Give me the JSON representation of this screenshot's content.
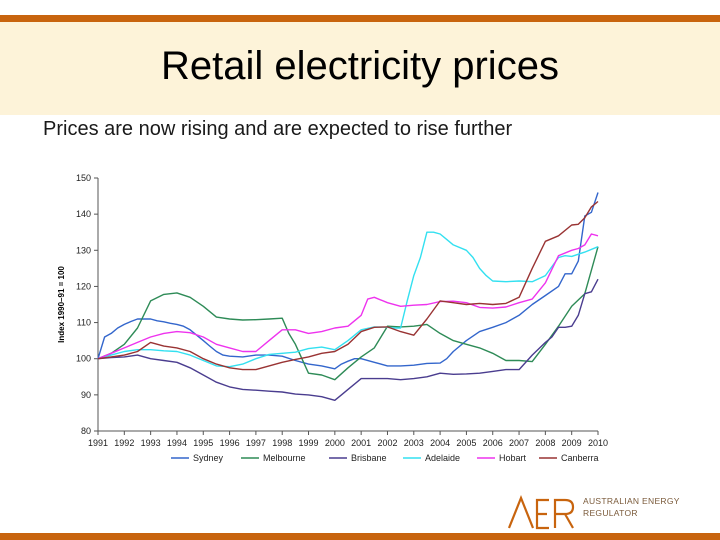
{
  "slide": {
    "title": "Retail electricity prices",
    "subtitle": "Prices are now rising and are expected to rise further"
  },
  "colors": {
    "accent_bar": "#c8640e",
    "band": "#fdf3d9",
    "logo_orange": "#c8640e",
    "logo_text": "#7a5a3a"
  },
  "logo": {
    "mark": "AER",
    "line1": "AUSTRALIAN ENERGY",
    "line2": "REGULATOR"
  },
  "chart_data": {
    "type": "line",
    "ylabel": "Index 1990–91 = 100",
    "xlabel": "",
    "ylim": [
      80,
      150
    ],
    "yticks": [
      80,
      90,
      100,
      110,
      120,
      130,
      140,
      150
    ],
    "xticks": [
      "1991",
      "1992",
      "1993",
      "1994",
      "1995",
      "1996",
      "1997",
      "1998",
      "1999",
      "2000",
      "2001",
      "2002",
      "2003",
      "2004",
      "2005",
      "2006",
      "2007",
      "2008",
      "2009",
      "2010"
    ],
    "xlim": [
      1991,
      2010
    ],
    "grid": false,
    "legend": "bottom",
    "series": [
      {
        "name": "Sydney",
        "color": "#3366cc",
        "points": [
          [
            1991,
            100
          ],
          [
            1991.25,
            106
          ],
          [
            1991.5,
            107
          ],
          [
            1991.75,
            108.5
          ],
          [
            1992,
            109.5
          ],
          [
            1992.25,
            110.3
          ],
          [
            1992.5,
            111
          ],
          [
            1992.75,
            111
          ],
          [
            1993,
            111
          ],
          [
            1993.25,
            110.5
          ],
          [
            1993.5,
            110.2
          ],
          [
            1993.75,
            109.8
          ],
          [
            1994,
            109.5
          ],
          [
            1994.25,
            109
          ],
          [
            1994.5,
            108
          ],
          [
            1994.75,
            106.5
          ],
          [
            1995,
            105
          ],
          [
            1995.25,
            103.5
          ],
          [
            1995.5,
            102
          ],
          [
            1995.75,
            101
          ],
          [
            1996,
            100.7
          ],
          [
            1996.5,
            100.5
          ],
          [
            1997,
            101
          ],
          [
            1997.5,
            101
          ],
          [
            1998,
            100.7
          ],
          [
            1998.5,
            99.5
          ],
          [
            1999,
            98.5
          ],
          [
            1999.5,
            98
          ],
          [
            2000,
            97.2
          ],
          [
            2000.25,
            98.5
          ],
          [
            2000.5,
            99.3
          ],
          [
            2000.75,
            100
          ],
          [
            2001,
            100
          ],
          [
            2001.5,
            99
          ],
          [
            2002,
            98
          ],
          [
            2002.5,
            98
          ],
          [
            2003,
            98.2
          ],
          [
            2003.5,
            98.7
          ],
          [
            2004,
            98.8
          ],
          [
            2004.25,
            100
          ],
          [
            2004.5,
            102
          ],
          [
            2005,
            105
          ],
          [
            2005.5,
            107.5
          ],
          [
            2006,
            108.7
          ],
          [
            2006.5,
            110
          ],
          [
            2007,
            112
          ],
          [
            2007.5,
            115
          ],
          [
            2008,
            117.5
          ],
          [
            2008.5,
            120
          ],
          [
            2008.75,
            123.5
          ],
          [
            2009,
            123.5
          ],
          [
            2009.25,
            127
          ],
          [
            2009.5,
            139.5
          ],
          [
            2009.75,
            140.5
          ],
          [
            2010,
            146
          ]
        ]
      },
      {
        "name": "Melbourne",
        "color": "#2e8b57",
        "points": [
          [
            1991,
            100
          ],
          [
            1991.5,
            101.5
          ],
          [
            1992,
            104
          ],
          [
            1992.5,
            108.5
          ],
          [
            1993,
            116
          ],
          [
            1993.5,
            117.8
          ],
          [
            1994,
            118.2
          ],
          [
            1994.5,
            117
          ],
          [
            1995,
            114.5
          ],
          [
            1995.5,
            111.5
          ],
          [
            1996,
            111
          ],
          [
            1996.5,
            110.7
          ],
          [
            1997,
            110.8
          ],
          [
            1997.5,
            111
          ],
          [
            1998,
            111.2
          ],
          [
            1998.25,
            107
          ],
          [
            1998.5,
            104
          ],
          [
            1999,
            96
          ],
          [
            1999.5,
            95.5
          ],
          [
            2000,
            94.2
          ],
          [
            2000.5,
            97.5
          ],
          [
            2001,
            100.5
          ],
          [
            2001.5,
            103
          ],
          [
            2002,
            109
          ],
          [
            2002.5,
            108.8
          ],
          [
            2003,
            109
          ],
          [
            2003.5,
            109.5
          ],
          [
            2004,
            107
          ],
          [
            2004.5,
            105
          ],
          [
            2005,
            104
          ],
          [
            2005.5,
            103
          ],
          [
            2006,
            101.5
          ],
          [
            2006.5,
            99.5
          ],
          [
            2007,
            99.5
          ],
          [
            2007.5,
            99.2
          ],
          [
            2008,
            104
          ],
          [
            2008.5,
            109
          ],
          [
            2009,
            114.5
          ],
          [
            2009.5,
            118
          ],
          [
            2010,
            131
          ]
        ]
      },
      {
        "name": "Brisbane",
        "color": "#4a3d8f",
        "points": [
          [
            1991,
            100
          ],
          [
            1991.5,
            100.3
          ],
          [
            1992,
            100.5
          ],
          [
            1992.5,
            101
          ],
          [
            1993,
            100
          ],
          [
            1993.5,
            99.5
          ],
          [
            1994,
            99
          ],
          [
            1994.5,
            97.5
          ],
          [
            1995,
            95.5
          ],
          [
            1995.5,
            93.5
          ],
          [
            1996,
            92.2
          ],
          [
            1996.5,
            91.5
          ],
          [
            1997,
            91.3
          ],
          [
            1997.5,
            91
          ],
          [
            1998,
            90.8
          ],
          [
            1998.5,
            90.2
          ],
          [
            1999,
            90
          ],
          [
            1999.5,
            89.5
          ],
          [
            2000,
            88.5
          ],
          [
            2000.25,
            90
          ],
          [
            2000.5,
            91.5
          ],
          [
            2001,
            94.5
          ],
          [
            2001.5,
            94.5
          ],
          [
            2002,
            94.5
          ],
          [
            2002.5,
            94.2
          ],
          [
            2003,
            94.5
          ],
          [
            2003.5,
            95
          ],
          [
            2004,
            96
          ],
          [
            2004.5,
            95.7
          ],
          [
            2005,
            95.8
          ],
          [
            2005.5,
            96
          ],
          [
            2006,
            96.5
          ],
          [
            2006.5,
            97
          ],
          [
            2007,
            97
          ],
          [
            2007.5,
            101
          ],
          [
            2008,
            104.5
          ],
          [
            2008.25,
            106
          ],
          [
            2008.5,
            108.7
          ],
          [
            2008.75,
            108.7
          ],
          [
            2009,
            109
          ],
          [
            2009.25,
            112
          ],
          [
            2009.5,
            118
          ],
          [
            2009.75,
            118.5
          ],
          [
            2010,
            122
          ]
        ]
      },
      {
        "name": "Adelaide",
        "color": "#33e0f0",
        "points": [
          [
            1991,
            100
          ],
          [
            1991.5,
            101
          ],
          [
            1992,
            102
          ],
          [
            1992.5,
            102.5
          ],
          [
            1993,
            102.5
          ],
          [
            1993.5,
            102.2
          ],
          [
            1994,
            102
          ],
          [
            1994.5,
            101
          ],
          [
            1995,
            99.5
          ],
          [
            1995.5,
            98
          ],
          [
            1996,
            97.8
          ],
          [
            1996.5,
            98.5
          ],
          [
            1997,
            100
          ],
          [
            1997.5,
            101.2
          ],
          [
            1998,
            101.5
          ],
          [
            1998.5,
            101.8
          ],
          [
            1999,
            102.8
          ],
          [
            1999.5,
            103.2
          ],
          [
            2000,
            102.5
          ],
          [
            2000.5,
            105
          ],
          [
            2001,
            108
          ],
          [
            2001.5,
            108.8
          ],
          [
            2002,
            108.7
          ],
          [
            2002.25,
            108.5
          ],
          [
            2002.5,
            108.5
          ],
          [
            2002.75,
            116
          ],
          [
            2003,
            123
          ],
          [
            2003.25,
            128
          ],
          [
            2003.5,
            135
          ],
          [
            2003.75,
            135
          ],
          [
            2004,
            134.5
          ],
          [
            2004.25,
            133
          ],
          [
            2004.5,
            131.5
          ],
          [
            2005,
            130
          ],
          [
            2005.25,
            128
          ],
          [
            2005.5,
            125
          ],
          [
            2005.75,
            123
          ],
          [
            2006,
            121.5
          ],
          [
            2006.5,
            121.3
          ],
          [
            2007,
            121.5
          ],
          [
            2007.5,
            121.3
          ],
          [
            2008,
            123
          ],
          [
            2008.5,
            128
          ],
          [
            2008.75,
            128.5
          ],
          [
            2009,
            128.3
          ],
          [
            2009.5,
            129.5
          ],
          [
            2010,
            131
          ]
        ]
      },
      {
        "name": "Hobart",
        "color": "#ee33ee",
        "points": [
          [
            1991,
            100
          ],
          [
            1991.5,
            101.5
          ],
          [
            1992,
            103
          ],
          [
            1992.5,
            104.5
          ],
          [
            1993,
            106
          ],
          [
            1993.5,
            107
          ],
          [
            1994,
            107.5
          ],
          [
            1994.5,
            107.2
          ],
          [
            1995,
            106
          ],
          [
            1995.5,
            104
          ],
          [
            1996,
            103
          ],
          [
            1996.5,
            102
          ],
          [
            1997,
            102
          ],
          [
            1997.5,
            105
          ],
          [
            1998,
            108
          ],
          [
            1998.5,
            108
          ],
          [
            1999,
            107
          ],
          [
            1999.5,
            107.5
          ],
          [
            2000,
            108.5
          ],
          [
            2000.5,
            109
          ],
          [
            2001,
            112
          ],
          [
            2001.25,
            116.5
          ],
          [
            2001.5,
            117
          ],
          [
            2002,
            115.5
          ],
          [
            2002.5,
            114.5
          ],
          [
            2003,
            114.8
          ],
          [
            2003.5,
            115
          ],
          [
            2004,
            115.8
          ],
          [
            2004.5,
            115.9
          ],
          [
            2005,
            115.5
          ],
          [
            2005.5,
            114.2
          ],
          [
            2006,
            114
          ],
          [
            2006.5,
            114.3
          ],
          [
            2007,
            115.5
          ],
          [
            2007.5,
            116.5
          ],
          [
            2008,
            121
          ],
          [
            2008.5,
            128.5
          ],
          [
            2009,
            130
          ],
          [
            2009.25,
            130.5
          ],
          [
            2009.5,
            131.5
          ],
          [
            2009.75,
            134.5
          ],
          [
            2010,
            134
          ]
        ]
      },
      {
        "name": "Canberra",
        "color": "#993333",
        "points": [
          [
            1991,
            100
          ],
          [
            1991.5,
            100.5
          ],
          [
            1992,
            101
          ],
          [
            1992.5,
            102
          ],
          [
            1993,
            104.5
          ],
          [
            1993.5,
            103.5
          ],
          [
            1994,
            103
          ],
          [
            1994.5,
            102
          ],
          [
            1995,
            100
          ],
          [
            1995.5,
            98.5
          ],
          [
            1996,
            97.5
          ],
          [
            1996.5,
            97
          ],
          [
            1997,
            97
          ],
          [
            1997.5,
            98
          ],
          [
            1998,
            99
          ],
          [
            1998.5,
            99.8
          ],
          [
            1999,
            100.5
          ],
          [
            1999.5,
            101.5
          ],
          [
            2000,
            102
          ],
          [
            2000.5,
            104
          ],
          [
            2001,
            107.5
          ],
          [
            2001.5,
            108.7
          ],
          [
            2002,
            108.8
          ],
          [
            2002.5,
            107.5
          ],
          [
            2003,
            106.5
          ],
          [
            2003.5,
            111
          ],
          [
            2004,
            116
          ],
          [
            2004.5,
            115.5
          ],
          [
            2005,
            115
          ],
          [
            2005.5,
            115.3
          ],
          [
            2006,
            115
          ],
          [
            2006.5,
            115.3
          ],
          [
            2007,
            117
          ],
          [
            2007.5,
            125
          ],
          [
            2008,
            132.5
          ],
          [
            2008.5,
            134
          ],
          [
            2009,
            137
          ],
          [
            2009.25,
            137.2
          ],
          [
            2009.5,
            139
          ],
          [
            2009.75,
            142
          ],
          [
            2010,
            143.5
          ]
        ]
      }
    ]
  }
}
